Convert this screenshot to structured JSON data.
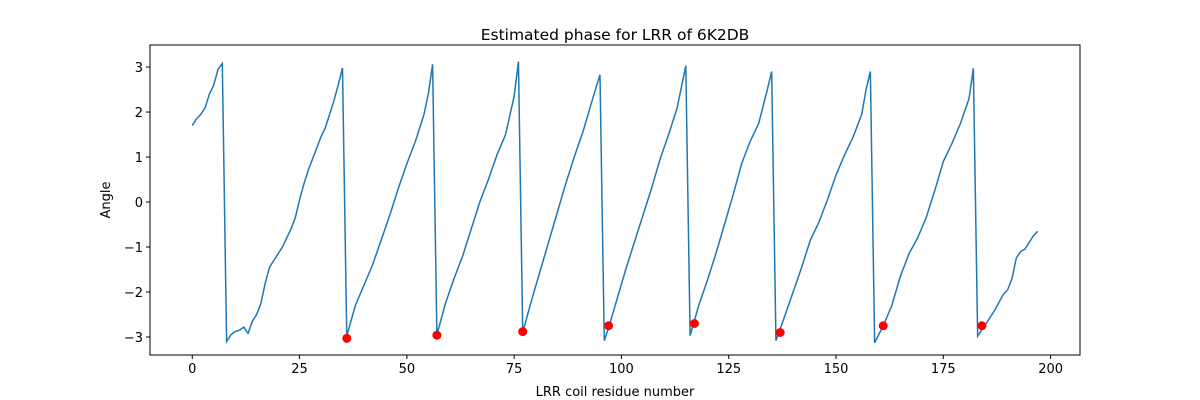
{
  "chart_data": {
    "type": "line",
    "title": "Estimated phase for LRR of 6K2DB",
    "x_label": "LRR coil residue number",
    "y_label": "Angle",
    "xlim": [
      -9.85,
      206.85
    ],
    "ylim": [
      -3.4,
      3.49
    ],
    "xticks": [
      0,
      25,
      50,
      75,
      100,
      125,
      150,
      175,
      200
    ],
    "yticks": [
      {
        "value": -3,
        "label": "−3"
      },
      {
        "value": -2,
        "label": "−2"
      },
      {
        "value": -1,
        "label": "−1"
      },
      0,
      1,
      2,
      3
    ],
    "series": [
      {
        "type": "line",
        "color": "#1f77b4",
        "x": [
          0,
          1,
          2,
          3,
          4,
          5,
          6,
          7,
          8,
          9,
          10,
          11,
          12,
          13,
          14,
          15,
          16,
          17,
          18,
          19,
          20,
          21,
          22,
          23,
          24,
          25,
          26,
          27,
          28,
          29,
          30,
          31,
          32,
          33,
          34,
          35,
          36,
          38,
          40,
          42,
          44,
          46,
          48,
          50,
          52,
          54,
          55,
          56,
          57,
          59,
          61,
          63,
          65,
          67,
          69,
          71,
          73,
          75,
          76,
          77,
          79,
          81,
          83,
          85,
          87,
          89,
          91,
          93,
          95,
          96,
          97,
          99,
          101,
          103,
          105,
          107,
          109,
          111,
          113,
          115,
          116,
          118,
          120,
          122,
          124,
          126,
          128,
          130,
          132,
          134,
          135,
          136,
          138,
          140,
          142,
          144,
          146,
          148,
          150,
          152,
          154,
          156,
          157,
          158,
          159,
          161,
          163,
          165,
          167,
          169,
          171,
          173,
          175,
          177,
          179,
          181,
          182,
          183,
          185,
          187,
          189,
          190,
          191,
          192,
          193,
          194,
          195,
          196,
          197
        ],
        "values": [
          1.7,
          1.85,
          1.95,
          2.1,
          2.4,
          2.6,
          2.95,
          3.08,
          -3.1,
          -2.95,
          -2.88,
          -2.85,
          -2.78,
          -2.92,
          -2.65,
          -2.5,
          -2.25,
          -1.8,
          -1.45,
          -1.3,
          -1.15,
          -1.0,
          -0.8,
          -0.6,
          -0.35,
          0.05,
          0.4,
          0.7,
          0.95,
          1.2,
          1.45,
          1.65,
          1.95,
          2.25,
          2.6,
          2.98,
          -2.98,
          -2.3,
          -1.85,
          -1.4,
          -0.85,
          -0.3,
          0.3,
          0.85,
          1.35,
          1.95,
          2.4,
          3.06,
          -2.95,
          -2.25,
          -1.7,
          -1.2,
          -0.6,
          0,
          0.5,
          1.05,
          1.5,
          2.35,
          3.12,
          -2.9,
          -2.2,
          -1.55,
          -0.9,
          -0.25,
          0.4,
          1.0,
          1.55,
          2.2,
          2.83,
          -3.08,
          -2.8,
          -2.15,
          -1.5,
          -0.9,
          -0.3,
          0.3,
          0.95,
          1.5,
          2.1,
          3.03,
          -2.97,
          -2.3,
          -1.75,
          -1.15,
          -0.5,
          0.15,
          0.85,
          1.35,
          1.75,
          2.5,
          2.9,
          -3.08,
          -2.55,
          -2.0,
          -1.45,
          -0.85,
          -0.45,
          0.05,
          0.6,
          1.05,
          1.45,
          1.95,
          2.5,
          2.9,
          -3.13,
          -2.75,
          -2.3,
          -1.65,
          -1.15,
          -0.8,
          -0.35,
          0.25,
          0.9,
          1.3,
          1.75,
          2.3,
          2.97,
          -2.98,
          -2.7,
          -2.4,
          -2.05,
          -1.95,
          -1.7,
          -1.25,
          -1.1,
          -1.05,
          -0.9,
          -0.75,
          -0.65
        ]
      },
      {
        "type": "scatter",
        "color": "#ff0000",
        "x": [
          36,
          57,
          77,
          97,
          117,
          137,
          161,
          184
        ],
        "values": [
          -3.03,
          -2.96,
          -2.88,
          -2.75,
          -2.7,
          -2.9,
          -2.75,
          -2.75
        ]
      }
    ]
  }
}
